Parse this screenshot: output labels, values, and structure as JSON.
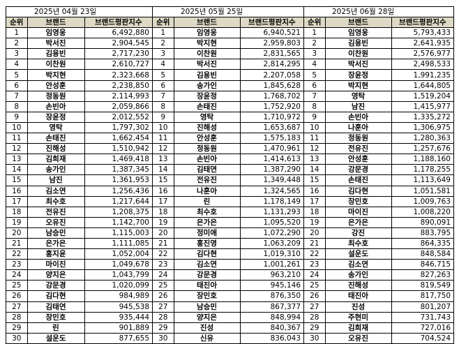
{
  "headers": {
    "rank": "순위",
    "brand": "브랜드",
    "score": "브랜드평판지수"
  },
  "tables": [
    {
      "date": "2025년 04월 23일",
      "rows": [
        {
          "rank": "1",
          "brand": "임영웅",
          "score": "6,492,880"
        },
        {
          "rank": "2",
          "brand": "박서진",
          "score": "2,904,545"
        },
        {
          "rank": "3",
          "brand": "김용빈",
          "score": "2,717,230"
        },
        {
          "rank": "4",
          "brand": "이찬원",
          "score": "2,610,727"
        },
        {
          "rank": "5",
          "brand": "박지현",
          "score": "2,323,668"
        },
        {
          "rank": "6",
          "brand": "안성훈",
          "score": "2,238,850"
        },
        {
          "rank": "7",
          "brand": "정동원",
          "score": "2,114,993"
        },
        {
          "rank": "8",
          "brand": "손빈아",
          "score": "2,059,866"
        },
        {
          "rank": "9",
          "brand": "장윤정",
          "score": "2,012,552"
        },
        {
          "rank": "10",
          "brand": "영탁",
          "score": "1,797,302"
        },
        {
          "rank": "11",
          "brand": "손태진",
          "score": "1,662,454"
        },
        {
          "rank": "12",
          "brand": "진해성",
          "score": "1,510,942"
        },
        {
          "rank": "13",
          "brand": "김희재",
          "score": "1,469,418"
        },
        {
          "rank": "14",
          "brand": "송가인",
          "score": "1,387,345"
        },
        {
          "rank": "15",
          "brand": "남진",
          "score": "1,361,953"
        },
        {
          "rank": "16",
          "brand": "김소연",
          "score": "1,256,436"
        },
        {
          "rank": "17",
          "brand": "최수호",
          "score": "1,217,644"
        },
        {
          "rank": "18",
          "brand": "전유진",
          "score": "1,208,375"
        },
        {
          "rank": "19",
          "brand": "오유진",
          "score": "1,142,700"
        },
        {
          "rank": "20",
          "brand": "남승민",
          "score": "1,115,003"
        },
        {
          "rank": "21",
          "brand": "은가은",
          "score": "1,111,085"
        },
        {
          "rank": "22",
          "brand": "홍지윤",
          "score": "1,052,004"
        },
        {
          "rank": "23",
          "brand": "마이진",
          "score": "1,049,678"
        },
        {
          "rank": "24",
          "brand": "양지은",
          "score": "1,043,799"
        },
        {
          "rank": "25",
          "brand": "강문경",
          "score": "1,020,099"
        },
        {
          "rank": "26",
          "brand": "김다현",
          "score": "984,989"
        },
        {
          "rank": "27",
          "brand": "김태연",
          "score": "945,538"
        },
        {
          "rank": "28",
          "brand": "장민호",
          "score": "935,444"
        },
        {
          "rank": "29",
          "brand": "린",
          "score": "901,889"
        },
        {
          "rank": "30",
          "brand": "설운도",
          "score": "877,655"
        }
      ]
    },
    {
      "date": "2025년 05월 25일",
      "rows": [
        {
          "rank": "1",
          "brand": "임영웅",
          "score": "6,940,521"
        },
        {
          "rank": "2",
          "brand": "박지현",
          "score": "2,959,803"
        },
        {
          "rank": "3",
          "brand": "이찬원",
          "score": "2,831,565"
        },
        {
          "rank": "4",
          "brand": "박서진",
          "score": "2,814,295"
        },
        {
          "rank": "5",
          "brand": "김용빈",
          "score": "2,207,058"
        },
        {
          "rank": "6",
          "brand": "송가인",
          "score": "1,845,628"
        },
        {
          "rank": "7",
          "brand": "장윤정",
          "score": "1,768,702"
        },
        {
          "rank": "8",
          "brand": "손태진",
          "score": "1,752,920"
        },
        {
          "rank": "9",
          "brand": "영탁",
          "score": "1,710,972"
        },
        {
          "rank": "10",
          "brand": "진해성",
          "score": "1,653,687"
        },
        {
          "rank": "11",
          "brand": "안성훈",
          "score": "1,575,183"
        },
        {
          "rank": "12",
          "brand": "정동원",
          "score": "1,470,961"
        },
        {
          "rank": "13",
          "brand": "손빈아",
          "score": "1,414,613"
        },
        {
          "rank": "14",
          "brand": "김태연",
          "score": "1,387,290"
        },
        {
          "rank": "15",
          "brand": "전유진",
          "score": "1,349,448"
        },
        {
          "rank": "16",
          "brand": "나훈아",
          "score": "1,324,565"
        },
        {
          "rank": "17",
          "brand": "린",
          "score": "1,178,149"
        },
        {
          "rank": "18",
          "brand": "최수호",
          "score": "1,131,293"
        },
        {
          "rank": "19",
          "brand": "은가은",
          "score": "1,095,520"
        },
        {
          "rank": "20",
          "brand": "정미애",
          "score": "1,072,290"
        },
        {
          "rank": "21",
          "brand": "홍진영",
          "score": "1,063,209"
        },
        {
          "rank": "22",
          "brand": "김다현",
          "score": "1,019,310"
        },
        {
          "rank": "23",
          "brand": "김소연",
          "score": "1,001,261"
        },
        {
          "rank": "24",
          "brand": "강문경",
          "score": "963,210"
        },
        {
          "rank": "25",
          "brand": "태진아",
          "score": "945,146"
        },
        {
          "rank": "26",
          "brand": "장민호",
          "score": "876,350"
        },
        {
          "rank": "27",
          "brand": "남승민",
          "score": "867,377"
        },
        {
          "rank": "28",
          "brand": "양지은",
          "score": "848,994"
        },
        {
          "rank": "29",
          "brand": "진성",
          "score": "840,367"
        },
        {
          "rank": "30",
          "brand": "신유",
          "score": "836,043"
        }
      ]
    },
    {
      "date": "2025년 06월 28일",
      "rows": [
        {
          "rank": "1",
          "brand": "임영웅",
          "score": "5,793,433"
        },
        {
          "rank": "2",
          "brand": "김용빈",
          "score": "2,641,935"
        },
        {
          "rank": "3",
          "brand": "이찬원",
          "score": "2,576,977"
        },
        {
          "rank": "4",
          "brand": "박서진",
          "score": "2,498,533"
        },
        {
          "rank": "5",
          "brand": "장윤정",
          "score": "1,991,235"
        },
        {
          "rank": "6",
          "brand": "박지현",
          "score": "1,644,805"
        },
        {
          "rank": "7",
          "brand": "영탁",
          "score": "1,519,204"
        },
        {
          "rank": "8",
          "brand": "남진",
          "score": "1,415,977"
        },
        {
          "rank": "9",
          "brand": "손빈아",
          "score": "1,335,272"
        },
        {
          "rank": "10",
          "brand": "나훈아",
          "score": "1,306,975"
        },
        {
          "rank": "11",
          "brand": "정동원",
          "score": "1,280,363"
        },
        {
          "rank": "12",
          "brand": "전유진",
          "score": "1,257,676"
        },
        {
          "rank": "13",
          "brand": "안성훈",
          "score": "1,188,160"
        },
        {
          "rank": "14",
          "brand": "강문경",
          "score": "1,178,255"
        },
        {
          "rank": "15",
          "brand": "손태진",
          "score": "1,113,649"
        },
        {
          "rank": "16",
          "brand": "김다현",
          "score": "1,051,581"
        },
        {
          "rank": "17",
          "brand": "장민호",
          "score": "1,009,763"
        },
        {
          "rank": "18",
          "brand": "마이진",
          "score": "1,008,220"
        },
        {
          "rank": "19",
          "brand": "은가은",
          "score": "890,091"
        },
        {
          "rank": "20",
          "brand": "강진",
          "score": "883,795"
        },
        {
          "rank": "21",
          "brand": "최수호",
          "score": "864,335"
        },
        {
          "rank": "22",
          "brand": "설운도",
          "score": "848,584"
        },
        {
          "rank": "23",
          "brand": "김소연",
          "score": "846,715"
        },
        {
          "rank": "24",
          "brand": "송가인",
          "score": "827,263"
        },
        {
          "rank": "25",
          "brand": "진해성",
          "score": "819,549"
        },
        {
          "rank": "26",
          "brand": "태진아",
          "score": "817,750"
        },
        {
          "rank": "27",
          "brand": "진성",
          "score": "801,207"
        },
        {
          "rank": "28",
          "brand": "주현미",
          "score": "731,743"
        },
        {
          "rank": "29",
          "brand": "김희재",
          "score": "727,016"
        },
        {
          "rank": "30",
          "brand": "오유진",
          "score": "704,524"
        }
      ]
    }
  ],
  "colors": {
    "header_bg": "#ddd9c4",
    "border": "#000000",
    "background": "#ffffff"
  }
}
